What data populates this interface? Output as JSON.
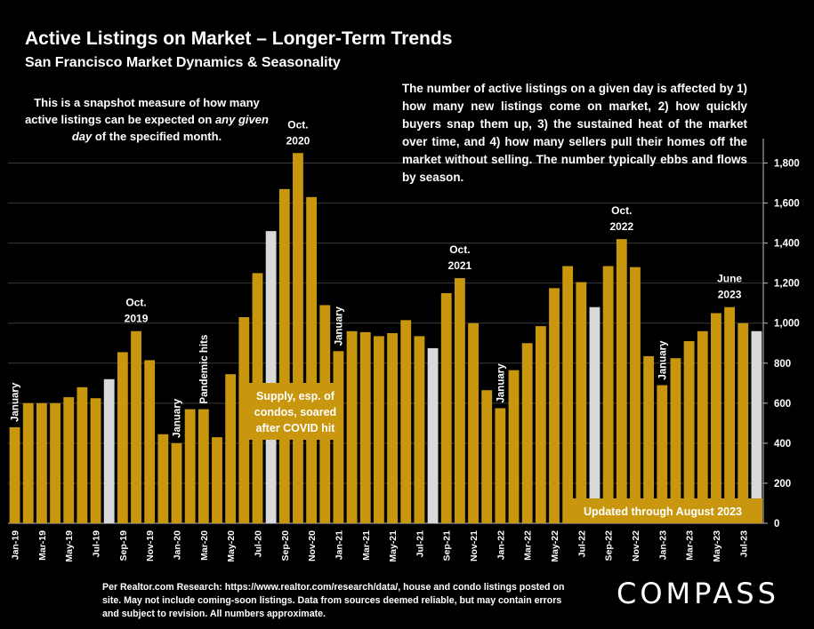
{
  "header": {
    "title": "Active Listings on Market – Longer-Term Trends",
    "subtitle": "San Francisco Market Dynamics & Seasonality"
  },
  "notes": {
    "left_part1": "This is a snapshot measure of how many active listings can be expected on",
    "left_italic": "any given day",
    "left_part2": "of the specified month.",
    "right": "The number of active listings on a given day is affected by 1) how many new listings come on market, 2) how quickly buyers snap them up, 3) the sustained heat of the market over time, and 4) how many sellers pull their homes off the market without selling. The number typically ebbs and flows by season."
  },
  "footer": {
    "text": "Per Realtor.com Research:  https://www.realtor.com/research/data/, house and condo listings posted on site. May not include coming-soon listings. Data from sources deemed reliable, but may contain errors and subject to revision. All numbers approximate."
  },
  "logo": {
    "text": "COMPASS"
  },
  "colors": {
    "bar": "#C9970E",
    "highlight": "#D9D9D9",
    "background": "#000000",
    "text": "#FFFFFF"
  },
  "chart_data": {
    "type": "bar",
    "x": [
      "Jan-19",
      "Feb-19",
      "Mar-19",
      "Apr-19",
      "May-19",
      "Jun-19",
      "Jul-19",
      "Aug-19",
      "Sep-19",
      "Oct-19",
      "Nov-19",
      "Dec-19",
      "Jan-20",
      "Feb-20",
      "Mar-20",
      "Apr-20",
      "May-20",
      "Jun-20",
      "Jul-20",
      "Aug-20",
      "Sep-20",
      "Oct-20",
      "Nov-20",
      "Dec-20",
      "Jan-21",
      "Feb-21",
      "Mar-21",
      "Apr-21",
      "May-21",
      "Jun-21",
      "Jul-21",
      "Aug-21",
      "Sep-21",
      "Oct-21",
      "Nov-21",
      "Dec-21",
      "Jan-22",
      "Feb-22",
      "Mar-22",
      "Apr-22",
      "May-22",
      "Jun-22",
      "Jul-22",
      "Aug-22",
      "Sep-22",
      "Oct-22",
      "Nov-22",
      "Dec-22",
      "Jan-23",
      "Feb-23",
      "Mar-23",
      "Apr-23",
      "May-23",
      "Jun-23",
      "Jul-23",
      "Aug-23"
    ],
    "x_tick_labels": [
      "Jan-19",
      "Mar-19",
      "May-19",
      "Jul-19",
      "Sep-19",
      "Nov-19",
      "Jan-20",
      "Mar-20",
      "May-20",
      "Jul-20",
      "Sep-20",
      "Nov-20",
      "Jan-21",
      "Mar-21",
      "May-21",
      "Jul-21",
      "Sep-21",
      "Nov-21",
      "Jan-22",
      "Mar-22",
      "May-22",
      "Jul-22",
      "Sep-22",
      "Nov-22",
      "Jan-23",
      "Mar-23",
      "May-23",
      "Jul-23"
    ],
    "values": [
      480,
      600,
      600,
      600,
      630,
      680,
      625,
      720,
      855,
      960,
      815,
      445,
      400,
      570,
      570,
      430,
      745,
      1030,
      1250,
      1460,
      1670,
      1850,
      1630,
      1090,
      860,
      960,
      955,
      935,
      950,
      1015,
      935,
      875,
      1150,
      1225,
      1000,
      665,
      575,
      765,
      900,
      985,
      1175,
      1285,
      1205,
      1080,
      1285,
      1420,
      1280,
      835,
      690,
      825,
      910,
      960,
      1050,
      1080,
      1000,
      960
    ],
    "highlight_months": [
      "Aug-19",
      "Aug-20",
      "Aug-21",
      "Aug-22",
      "Aug-23"
    ],
    "ylim": [
      0,
      1900
    ],
    "y_ticks": [
      0,
      200,
      400,
      600,
      800,
      1000,
      1200,
      1400,
      1600,
      1800
    ],
    "y_axis_side": "right",
    "annotations": [
      {
        "index": 0,
        "text": "January",
        "vertical": true
      },
      {
        "index": 9,
        "lines": [
          "Oct.",
          "2019"
        ]
      },
      {
        "index": 12,
        "text": "January",
        "vertical": true
      },
      {
        "index": 14,
        "text": "Pandemic hits",
        "vertical": true
      },
      {
        "index": 21,
        "lines": [
          "Oct.",
          "2020"
        ]
      },
      {
        "index": 24,
        "text": "January",
        "vertical": true
      },
      {
        "index": 33,
        "lines": [
          "Oct.",
          "2021"
        ]
      },
      {
        "index": 36,
        "text": "January",
        "vertical": true
      },
      {
        "index": 45,
        "lines": [
          "Oct.",
          "2022"
        ]
      },
      {
        "index": 48,
        "text": "January",
        "vertical": true
      },
      {
        "index": 53,
        "lines": [
          "June",
          "2023"
        ]
      }
    ],
    "callouts": {
      "covid": [
        "Supply, esp. of",
        "condos, soared",
        "after COVID hit"
      ],
      "updated": "Updated through August 2023"
    }
  }
}
